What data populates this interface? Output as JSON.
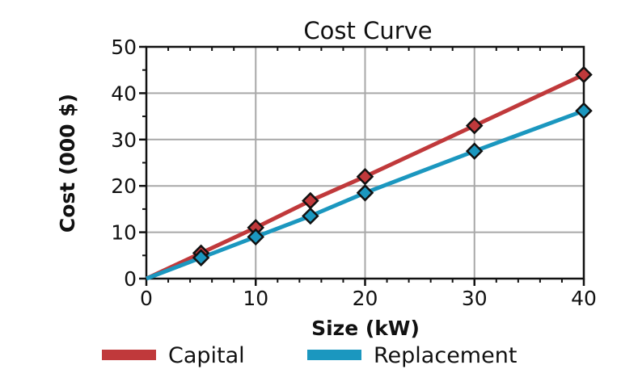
{
  "chart_data": {
    "type": "line",
    "title": "Cost Curve",
    "xlabel": "Size (kW)",
    "ylabel": "Cost (000 $)",
    "xlim": [
      0,
      40
    ],
    "ylim": [
      0,
      50
    ],
    "xticks": [
      0,
      10,
      20,
      30,
      40
    ],
    "yticks": [
      0,
      10,
      20,
      30,
      40,
      50
    ],
    "grid": true,
    "legend_position": "bottom",
    "series": [
      {
        "name": "Capital",
        "color": "#c0393b",
        "x": [
          0,
          5,
          10,
          15,
          20,
          30,
          40
        ],
        "y": [
          0,
          5.5,
          11,
          16.8,
          22,
          33,
          44
        ],
        "markers": [
          5,
          10,
          15,
          20,
          30,
          40
        ]
      },
      {
        "name": "Replacement",
        "color": "#1b97bf",
        "x": [
          0,
          5,
          10,
          15,
          20,
          30,
          40
        ],
        "y": [
          0,
          4.5,
          9,
          13.5,
          18.5,
          27.5,
          36.2
        ],
        "markers": [
          5,
          10,
          15,
          20,
          30,
          40
        ]
      }
    ]
  }
}
